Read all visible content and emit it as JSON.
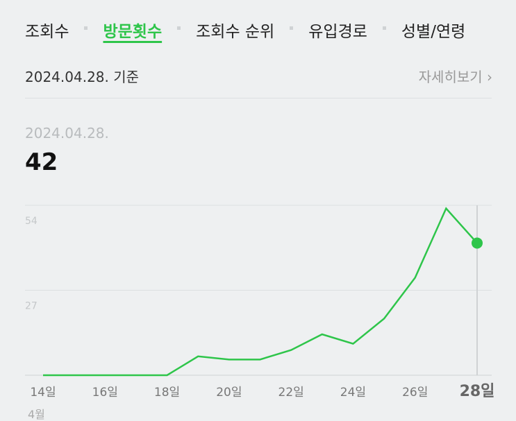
{
  "tabs": [
    "조회수",
    "방문횟수",
    "조회수 순위",
    "유입경로",
    "성별/연령"
  ],
  "active_tab": 1,
  "basis": "2024.04.28. 기준",
  "detail_link": "자세히보기",
  "selected_date": "2024.04.28.",
  "chart_data": {
    "type": "line",
    "categories": [
      "14일",
      null,
      "16일",
      null,
      "18일",
      null,
      "20일",
      null,
      "22일",
      null,
      "24일",
      null,
      "26일",
      null,
      "28일"
    ],
    "values": [
      0,
      0,
      0,
      0,
      0,
      6,
      5,
      5,
      8,
      13,
      10,
      18,
      31,
      53,
      42
    ],
    "color": "#2ec54a",
    "ylim": [
      0,
      54
    ],
    "yticks": [
      27,
      54
    ],
    "grid": true,
    "month_label": "4월"
  }
}
